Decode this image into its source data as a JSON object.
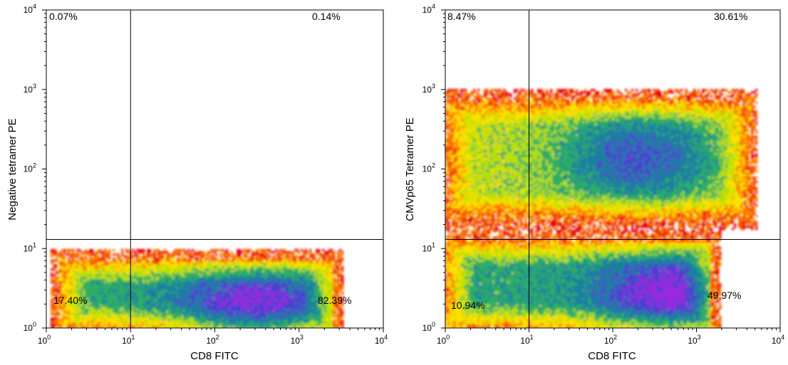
{
  "chart_data": [
    {
      "type": "scatter",
      "subtype": "flow-cytometry-density-plot",
      "xlabel": "CD8 FITC",
      "ylabel": "Negative tetramer PE",
      "xscale": "log",
      "yscale": "log",
      "xlim": [
        1,
        10000
      ],
      "ylim": [
        1,
        10000
      ],
      "x_tick_labels": [
        [
          "10",
          "0"
        ],
        [
          "10",
          "1"
        ],
        [
          "10",
          "2"
        ],
        [
          "10",
          "3"
        ],
        [
          "10",
          "4"
        ]
      ],
      "y_tick_labels": [
        [
          "10",
          "0"
        ],
        [
          "10",
          "1"
        ],
        [
          "10",
          "2"
        ],
        [
          "10",
          "3"
        ],
        [
          "10",
          "4"
        ]
      ],
      "gate": {
        "x": 10,
        "y": 13
      },
      "quadrants": {
        "upper_left": "0.07%",
        "upper_right": "0.14%",
        "lower_left": "17.40%",
        "lower_right": "82.39%"
      },
      "populations": [
        {
          "x": [
            1.5,
            2500
          ],
          "y": [
            1,
            7
          ],
          "density": "high",
          "peak": {
            "x": 300,
            "y": 1.6
          }
        }
      ]
    },
    {
      "type": "scatter",
      "subtype": "flow-cytometry-density-plot",
      "xlabel": "CD8 FITC",
      "ylabel": "CMVp65 Tetramer PE",
      "xscale": "log",
      "yscale": "log",
      "xlim": [
        1,
        10000
      ],
      "ylim": [
        1,
        10000
      ],
      "x_tick_labels": [
        [
          "10",
          "0"
        ],
        [
          "10",
          "1"
        ],
        [
          "10",
          "2"
        ],
        [
          "10",
          "3"
        ],
        [
          "10",
          "4"
        ]
      ],
      "y_tick_labels": [
        [
          "10",
          "0"
        ],
        [
          "10",
          "1"
        ],
        [
          "10",
          "2"
        ],
        [
          "10",
          "3"
        ],
        [
          "10",
          "4"
        ]
      ],
      "gate": {
        "x": 10,
        "y": 13
      },
      "quadrants": {
        "upper_left": "8.47%",
        "upper_right": "30.61%",
        "lower_left": "10.94%",
        "lower_right": "49.97%"
      },
      "populations": [
        {
          "x": [
            1,
            1500
          ],
          "y": [
            1,
            12
          ],
          "density": "high",
          "peak": {
            "x": 500,
            "y": 2.5
          }
        },
        {
          "x": [
            1,
            4000
          ],
          "y": [
            25,
            700
          ],
          "density": "medium",
          "peak": {
            "x": 200,
            "y": 140
          }
        }
      ]
    }
  ],
  "colors": {
    "scale": [
      "#e8000b",
      "#ff7a00",
      "#ffe000",
      "#b8e000",
      "#2fae62",
      "#1f7fa0",
      "#4a3fd0",
      "#9d28e0"
    ]
  }
}
